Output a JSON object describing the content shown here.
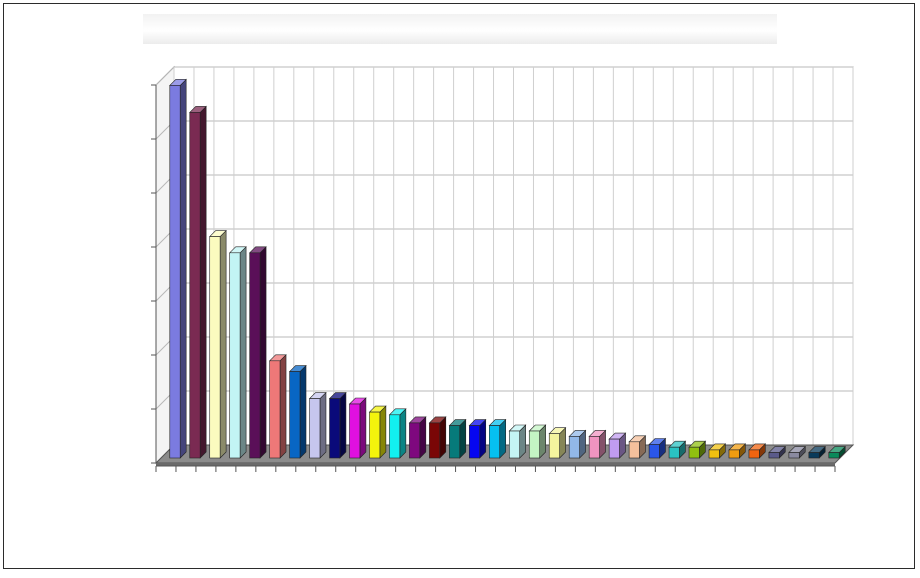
{
  "chart_data": {
    "type": "bar",
    "style": "3d-column",
    "title": "",
    "xlabel": "",
    "ylabel": "",
    "grid": true,
    "legend": "none",
    "ylim": [
      0,
      7
    ],
    "y_ticks": [
      0,
      1,
      2,
      3,
      4,
      5,
      6,
      7
    ],
    "values": [
      6.9,
      6.4,
      4.1,
      3.8,
      3.8,
      1.8,
      1.6,
      1.1,
      1.1,
      1.0,
      0.85,
      0.8,
      0.65,
      0.65,
      0.6,
      0.6,
      0.6,
      0.5,
      0.5,
      0.45,
      0.4,
      0.4,
      0.35,
      0.3,
      0.25,
      0.2,
      0.2,
      0.15,
      0.15,
      0.15,
      0.1,
      0.1,
      0.1,
      0.1
    ],
    "colors": [
      "#7b7be0",
      "#7a2a52",
      "#fbfbbf",
      "#c2f4f4",
      "#5a0f58",
      "#ee7878",
      "#0866c4",
      "#c6c6ee",
      "#0a0a7a",
      "#e010e0",
      "#f4f40c",
      "#12f0f0",
      "#7e087e",
      "#7a0606",
      "#067a7a",
      "#0606f0",
      "#06c0f0",
      "#c4f4f4",
      "#c4f4c4",
      "#f4f49e",
      "#92b8e8",
      "#f094c0",
      "#c09cf0",
      "#f4c09c",
      "#2a56e8",
      "#2ac2c2",
      "#90c010",
      "#f0c010",
      "#f09c10",
      "#f06410",
      "#5a5a8a",
      "#8a8aa0",
      "#0a3a5a",
      "#0a8a5a"
    ]
  }
}
